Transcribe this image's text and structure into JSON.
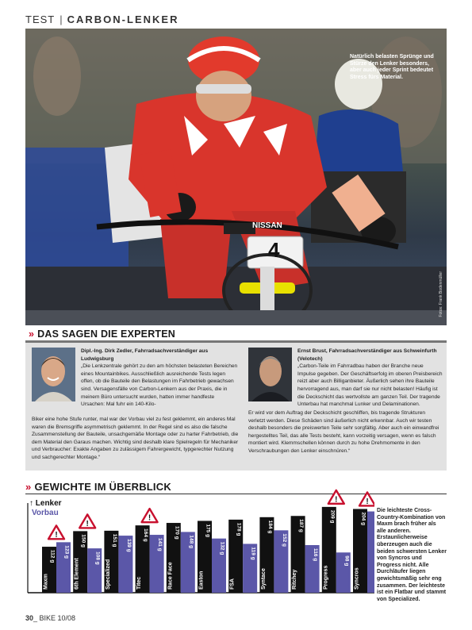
{
  "header": {
    "category": "TEST",
    "separator": "|",
    "section": "CARBON-LENKER"
  },
  "photo": {
    "caption": "Natürlich belasten Sprünge und Stürze den Lenker besonders, aber auch jeder Sprint bedeutet Stress fürs Material.",
    "credit": "Fotos: Frank Bodenmüller",
    "plate_number": "4",
    "jersey_text": "NISSAN"
  },
  "experts": {
    "title": "DAS SAGEN DIE EXPERTEN",
    "expert1": {
      "name": "Dipl.-Ing. Dirk Zedler, Fahrradsachverständiger aus Ludwigsburg",
      "text_top": "„Die Lenkzentrale gehört zu den am höchsten belasteten Bereichen eines Mountainbikes. Ausschließlich ausreichende Tests legen offen, ob die Bauteile den Belastungen im Fahrbetrieb gewachsen sind. Versagensfälle von Carbon-Lenkern aus der Praxis, die in meinem Büro untersucht wurden, hatten immer handfeste Ursachen: Mal fuhr ein 140-Kilo-",
      "text_bottom": "Biker eine hohe Stufe runter, mal war der Vorbau viel zu fest geklemmt, ein anderes Mal waren die Bremsgriffe asymmetrisch geklemmt. In der Regel sind es also die falsche Zusammenstellung der Bauteile, unsachgemäße Montage oder zu harter Fahrbetrieb, die dem Material den Garaus machen. Wichtig sind deshalb klare Spielregeln für Mechaniker und Verbraucher: Exakte Angaben zu zulässigem Fahrergewicht, typgerechter Nutzung und sachgerechter Montage.“"
    },
    "expert2": {
      "name": "Ernst Brust, Fahrradsachverständiger aus Schweinfurth (Velotech)",
      "text_top": "„Carbon-Teile im Fahrradbau haben der Branche neue Impulse gegeben. Der Geschäftserfolg im oberen Preisbereich reizt aber auch Billiganbieter. Äußerlich sehen ihre Bauteile hervorragend aus, man darf sie nur nicht belasten! Häufig ist die Deckschicht das wertvollste am ganzen Teil. Der tragende Unterbau hat manchmal Lunker und Delaminationen.",
      "text_bottom": "Er wird vor dem Auftrag der Deckschicht geschliffen, bis tragende Strukturen verletzt werden. Diese Schäden sind äußerlich nicht erkennbar. Auch wir testen deshalb besonders die preiswerten Teile sehr sorgfältig. Aber auch ein einwandfrei hergestelltes Teil, das alle Tests besteht, kann vorzeitig versagen, wenn es falsch montiert wird. Klemmschellen können durch zu hohe Drehmomente in den Verschraubungen den Lenker einschnüren.“"
    }
  },
  "weights": {
    "title": "GEWICHTE IM ÜBERBLICK",
    "legend_lenker": "Lenker",
    "legend_vorbau": "Vorbau",
    "side_text": "Die leichteste Cross-Country-Kombination von Maxm brach früher als alle anderen. Erstaunlicherweise überzeugen auch die beiden schwersten Lenker von Syncros und Progress nicht. Alle Durchläufer liegen gewichtsmäßig sehr eng zusammen. Der leichteste ist ein Flatbar und stammt von Specialized."
  },
  "chart_data": {
    "type": "bar",
    "categories": [
      "Maxm",
      "6th Element",
      "Specialized",
      "Titec",
      "Race Face",
      "Easton",
      "FSA",
      "Syntace",
      "Ritchey",
      "Progress",
      "Syncros"
    ],
    "series": [
      {
        "name": "Lenker",
        "color": "#111111",
        "values": [
          112,
          150,
          151,
          164,
          170,
          175,
          178,
          184,
          187,
          209,
          204
        ]
      },
      {
        "name": "Vorbau",
        "color": "#5b57a8",
        "values": [
          123,
          108,
          139,
          141,
          148,
          132,
          119,
          152,
          116,
          98,
          198
        ]
      }
    ],
    "value_labels": {
      "Lenker": [
        "112 g",
        "150 g",
        "151 g",
        "164 g",
        "170 g",
        "175 g",
        "178 g",
        "184 g",
        "187 g",
        "209 g",
        "204 g"
      ],
      "Vorbau": [
        "123 g",
        "108 g",
        "139 g",
        "141 g",
        "148 g",
        "132 g",
        "119 g",
        "152 g",
        "116 g",
        "98 g",
        "198 g"
      ]
    },
    "warning_icons_on": [
      "Maxm",
      "6th Element",
      "Titec",
      "Progress",
      "Syncros"
    ],
    "ylim": [
      0,
      230
    ],
    "legend": "top-left",
    "grid": false
  },
  "footer": {
    "page": "30",
    "issue": "BIKE 10/08"
  }
}
